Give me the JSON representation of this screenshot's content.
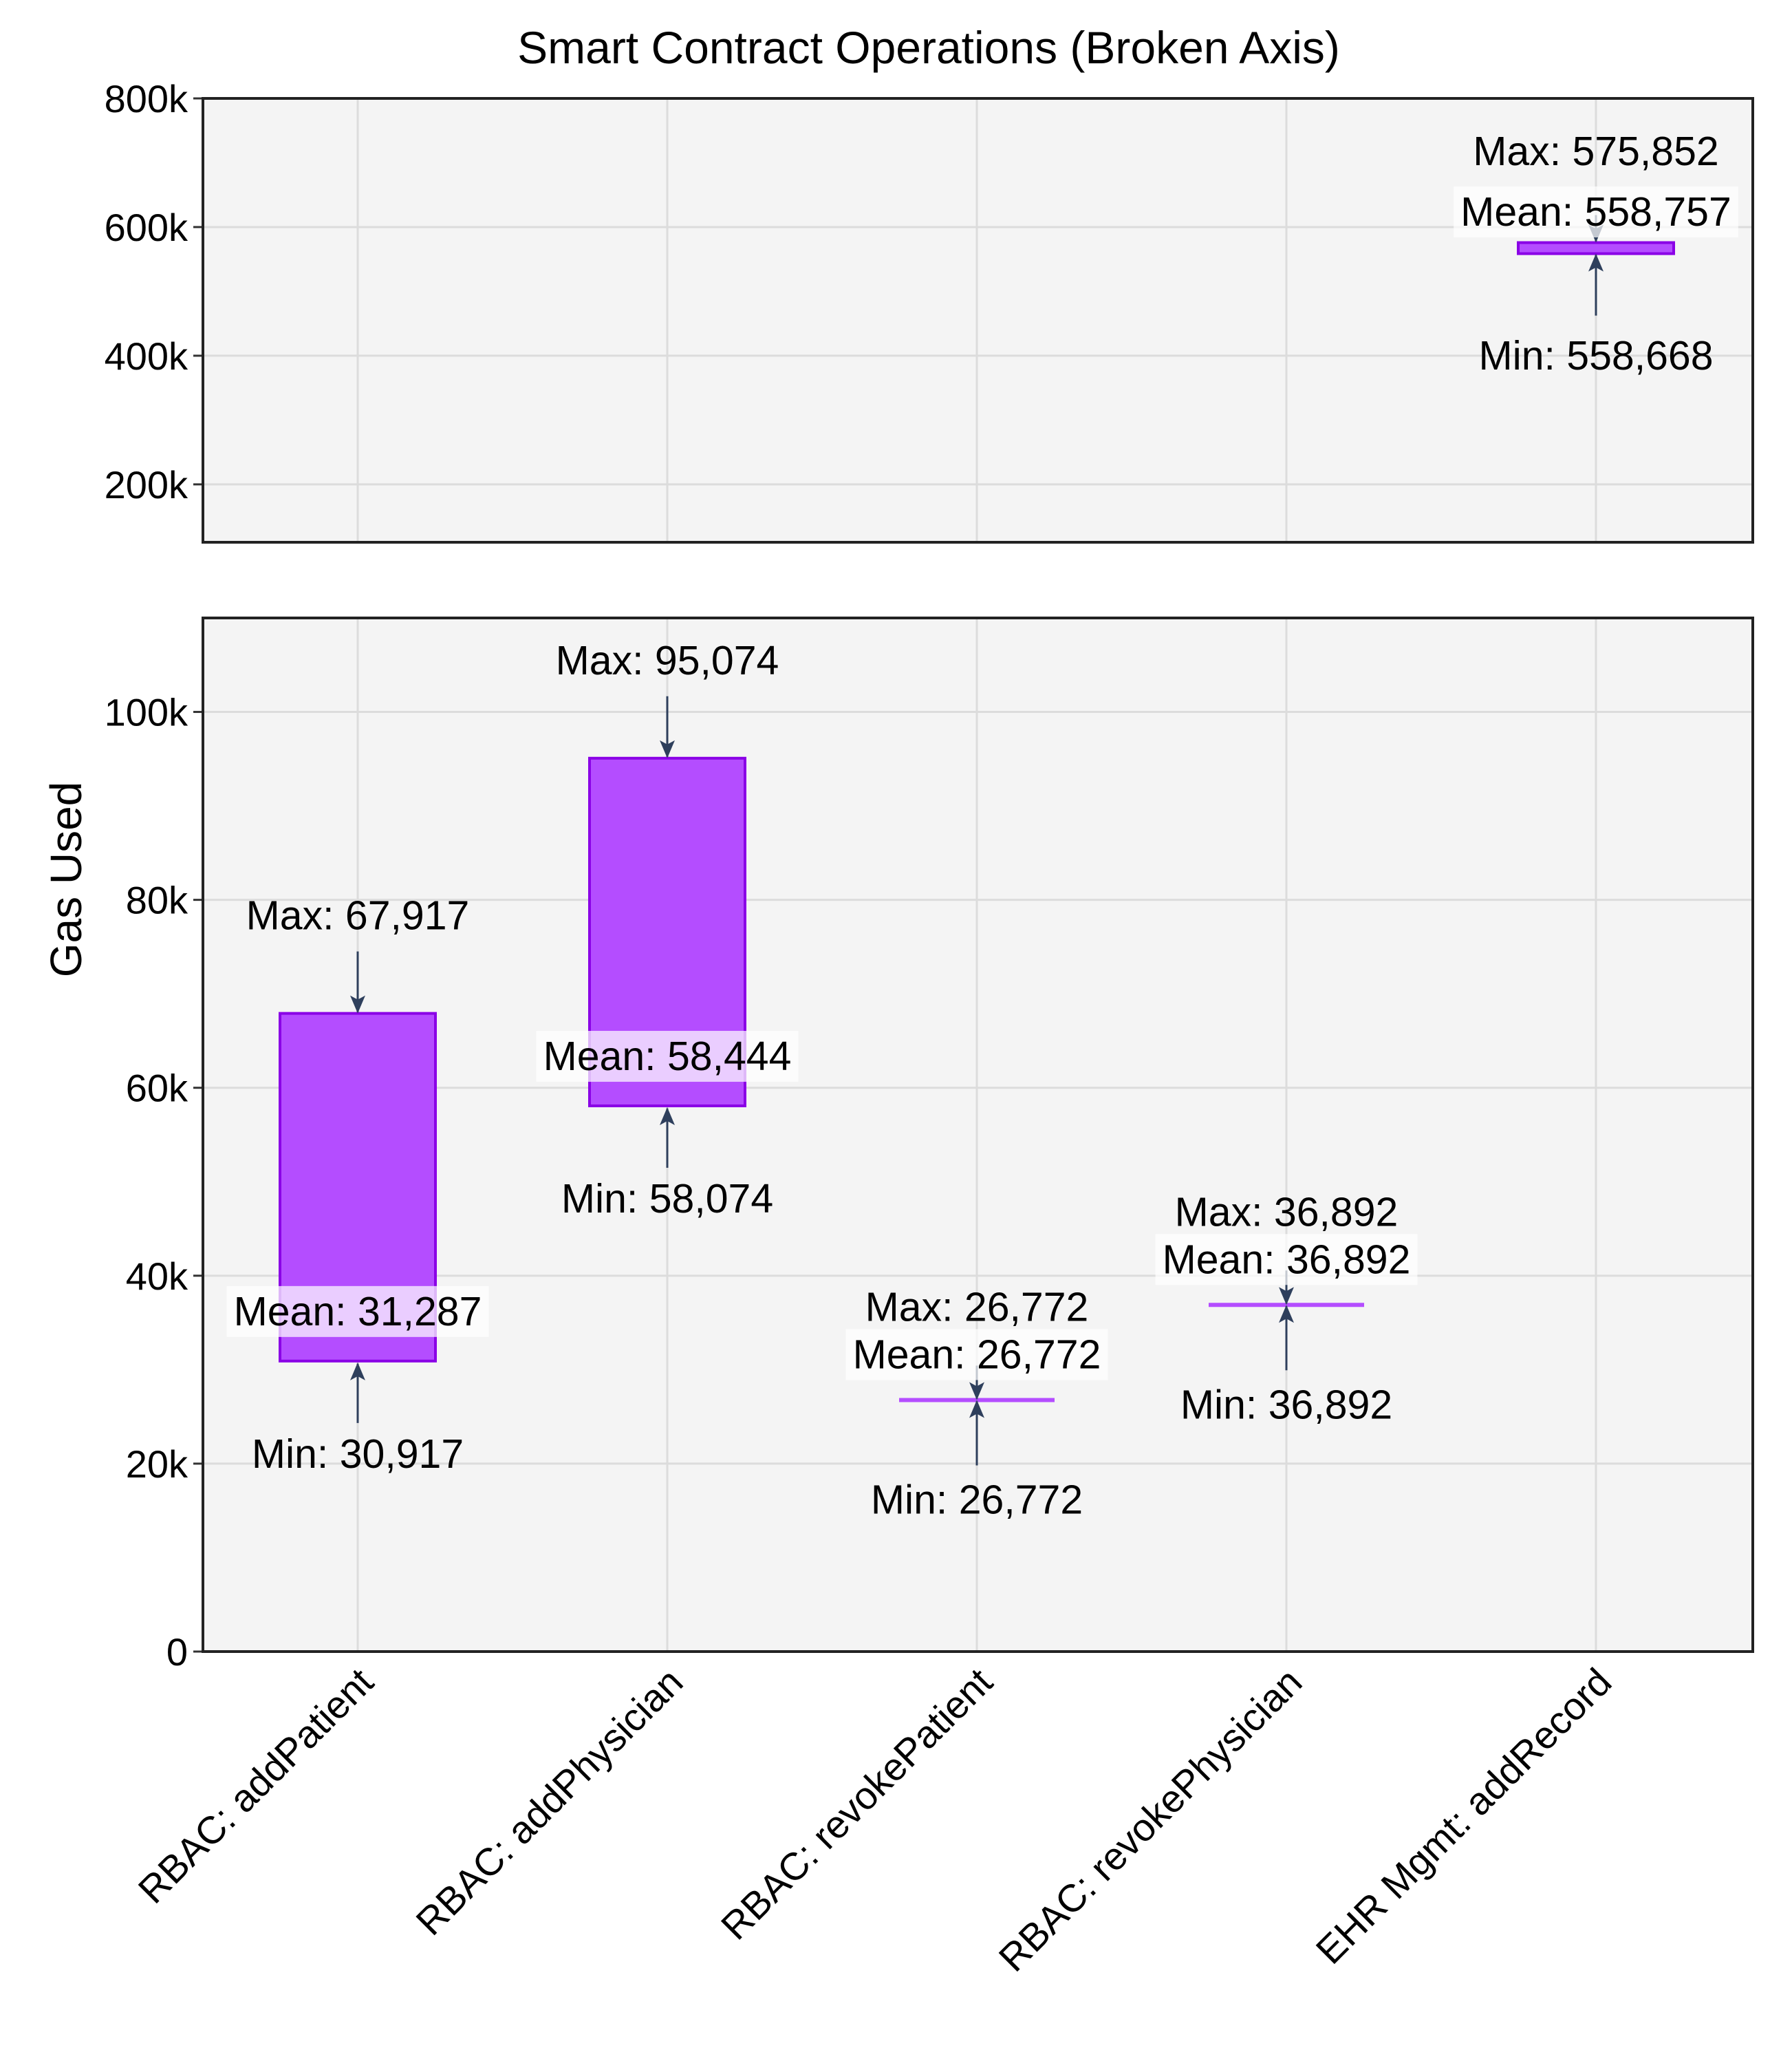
{
  "chart_data": {
    "type": "bar",
    "title": "Smart Contract Operations (Broken Axis)",
    "ylabel": "Gas Used",
    "xlabel": "",
    "grid": true,
    "categories": [
      "RBAC: addPatient",
      "RBAC: addPhysician",
      "RBAC: revokePatient",
      "RBAC: revokePhysician",
      "EHR Mgmt: addRecord"
    ],
    "min": [
      30917,
      58074,
      26772,
      36892,
      558668
    ],
    "max": [
      67917,
      95074,
      26772,
      36892,
      575852
    ],
    "mean": [
      31287,
      58444,
      26772,
      36892,
      558757
    ],
    "annotations": [
      {
        "max": "Max: 67,917",
        "mean": "Mean: 31,287",
        "min": "Min: 30,917"
      },
      {
        "max": "Max: 95,074",
        "mean": "Mean: 58,444",
        "min": "Min: 58,074"
      },
      {
        "max": "Max: 26,772",
        "mean": "Mean: 26,772",
        "min": "Min: 26,772"
      },
      {
        "max": "Max: 36,892",
        "mean": "Mean: 36,892",
        "min": "Min: 36,892"
      },
      {
        "max": "Max: 575,852",
        "mean": "Mean: 558,757",
        "min": "Min: 558,668"
      }
    ],
    "upper_axis": {
      "ylim": [
        110000,
        800000
      ],
      "ticks": [
        200000,
        400000,
        600000,
        800000
      ],
      "tick_labels": [
        "200k",
        "400k",
        "600k",
        "800k"
      ]
    },
    "lower_axis": {
      "ylim": [
        0,
        110000
      ],
      "ticks": [
        0,
        20000,
        40000,
        60000,
        80000,
        100000
      ],
      "tick_labels": [
        "0",
        "20k",
        "40k",
        "60k",
        "80k",
        "100k"
      ]
    },
    "colors": {
      "bar_fill": "#b44dff",
      "bar_edge": "#8a00e6",
      "arrow": "#2e3f5c",
      "panel_bg": "#f4f4f4",
      "grid": "#dcdcdc"
    }
  }
}
